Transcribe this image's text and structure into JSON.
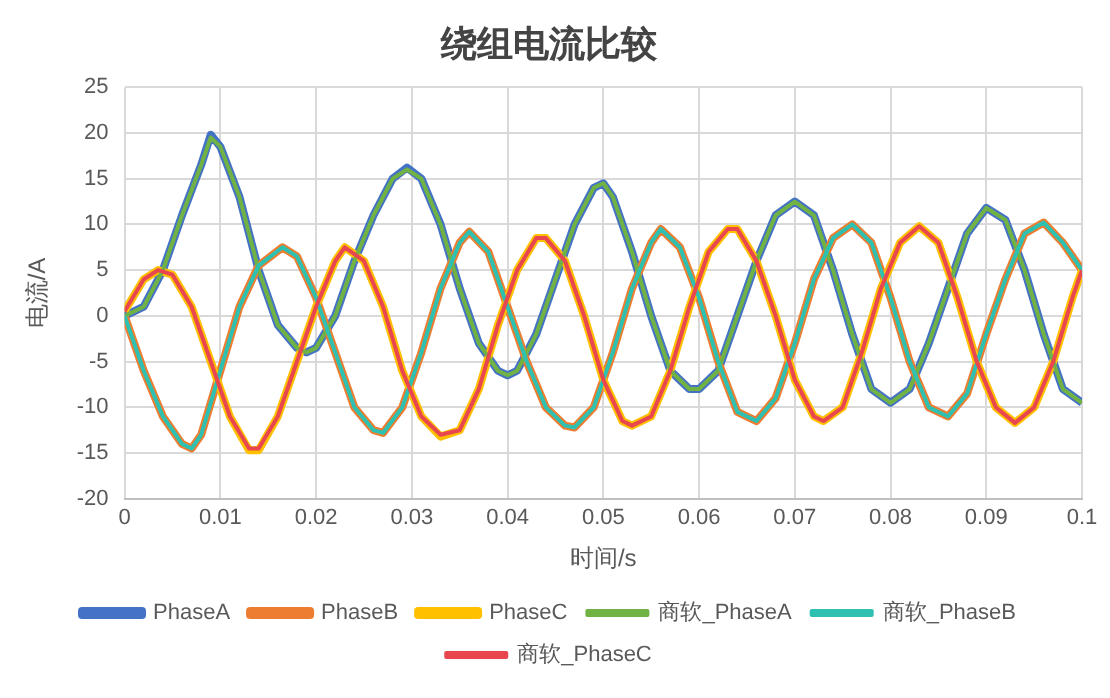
{
  "chart_data": {
    "type": "line",
    "title": "绕组电流比较",
    "xlabel": "时间/s",
    "ylabel": "电流/A",
    "xlim": [
      0,
      0.1
    ],
    "xticks": [
      0,
      0.01,
      0.02,
      0.03,
      0.04,
      0.05,
      0.06,
      0.07,
      0.08,
      0.09,
      0.1
    ],
    "ylim": [
      -20,
      25
    ],
    "yticks": [
      -20,
      -15,
      -10,
      -5,
      0,
      5,
      10,
      15,
      20,
      25
    ],
    "grid": true,
    "legend": "bottom",
    "marker": "none",
    "line_style": "solid",
    "series": [
      {
        "name": "PhaseA",
        "color": "#4472c4",
        "x": [
          0,
          0.002,
          0.004,
          0.006,
          0.008,
          0.009,
          0.01,
          0.012,
          0.014,
          0.016,
          0.018,
          0.019,
          0.02,
          0.022,
          0.024,
          0.026,
          0.028,
          0.0295,
          0.031,
          0.033,
          0.035,
          0.037,
          0.039,
          0.04,
          0.041,
          0.043,
          0.045,
          0.047,
          0.049,
          0.05,
          0.051,
          0.053,
          0.055,
          0.057,
          0.059,
          0.06,
          0.062,
          0.064,
          0.066,
          0.068,
          0.07,
          0.072,
          0.074,
          0.076,
          0.078,
          0.08,
          0.082,
          0.084,
          0.086,
          0.088,
          0.09,
          0.092,
          0.094,
          0.096,
          0.098,
          0.1
        ],
        "values": [
          0,
          1,
          5,
          11,
          16.5,
          19.8,
          18.5,
          13,
          5,
          -1,
          -3.5,
          -4,
          -3.5,
          0,
          6,
          11,
          15,
          16.2,
          15,
          10,
          3,
          -3,
          -6,
          -6.5,
          -6,
          -2,
          4,
          10,
          14,
          14.5,
          13,
          7,
          0,
          -6,
          -8,
          -8,
          -6,
          0,
          6,
          11,
          12.5,
          11,
          5,
          -2,
          -8,
          -9.5,
          -8,
          -3,
          3,
          9,
          11.8,
          10.5,
          5,
          -2,
          -8,
          -9.5
        ]
      },
      {
        "name": "PhaseB",
        "color": "#ed7d31",
        "x": [
          0,
          0.002,
          0.004,
          0.006,
          0.007,
          0.008,
          0.01,
          0.012,
          0.014,
          0.0165,
          0.018,
          0.02,
          0.022,
          0.024,
          0.026,
          0.027,
          0.029,
          0.031,
          0.033,
          0.035,
          0.036,
          0.038,
          0.04,
          0.042,
          0.044,
          0.046,
          0.047,
          0.049,
          0.051,
          0.053,
          0.055,
          0.056,
          0.058,
          0.06,
          0.062,
          0.064,
          0.066,
          0.068,
          0.07,
          0.072,
          0.074,
          0.076,
          0.078,
          0.08,
          0.082,
          0.084,
          0.086,
          0.088,
          0.09,
          0.092,
          0.094,
          0.096,
          0.098,
          0.1
        ],
        "values": [
          0,
          -6,
          -11,
          -14,
          -14.5,
          -13,
          -6,
          1,
          5.5,
          7.5,
          6.5,
          2,
          -4,
          -10,
          -12.5,
          -12.8,
          -10,
          -4,
          3,
          8,
          9.2,
          7,
          1,
          -5,
          -10,
          -12,
          -12.2,
          -10,
          -4,
          3,
          8,
          9.5,
          7.5,
          2,
          -5,
          -10.5,
          -11.5,
          -9,
          -3,
          4,
          8.5,
          10,
          8,
          2,
          -5,
          -10,
          -11,
          -8.5,
          -2,
          4,
          9,
          10.2,
          8,
          5
        ]
      },
      {
        "name": "PhaseC",
        "color": "#ffc000",
        "x": [
          0,
          0.002,
          0.0035,
          0.005,
          0.007,
          0.009,
          0.011,
          0.013,
          0.014,
          0.016,
          0.018,
          0.02,
          0.022,
          0.023,
          0.025,
          0.027,
          0.029,
          0.031,
          0.033,
          0.035,
          0.037,
          0.039,
          0.041,
          0.043,
          0.044,
          0.046,
          0.048,
          0.05,
          0.052,
          0.053,
          0.055,
          0.057,
          0.059,
          0.061,
          0.063,
          0.064,
          0.066,
          0.068,
          0.07,
          0.072,
          0.073,
          0.075,
          0.077,
          0.079,
          0.081,
          0.083,
          0.085,
          0.087,
          0.089,
          0.091,
          0.093,
          0.095,
          0.097,
          0.099,
          0.1
        ],
        "values": [
          0.5,
          4,
          5,
          4.5,
          1,
          -5,
          -11,
          -14.7,
          -14.7,
          -11,
          -5,
          1,
          6,
          7.5,
          6,
          1,
          -6,
          -11,
          -13.2,
          -12.5,
          -8,
          -1,
          5,
          8.5,
          8.5,
          6,
          0,
          -7,
          -11.5,
          -12,
          -11,
          -6,
          1,
          7,
          9.5,
          9.5,
          6,
          0,
          -7,
          -11,
          -11.5,
          -10,
          -4,
          3,
          8,
          9.8,
          8,
          2,
          -5,
          -10,
          -11.7,
          -10,
          -5,
          2,
          5
        ]
      },
      {
        "name": "商软_PhaseA",
        "color": "#70b244",
        "x": [
          0,
          0.002,
          0.004,
          0.006,
          0.008,
          0.009,
          0.01,
          0.012,
          0.014,
          0.016,
          0.018,
          0.019,
          0.02,
          0.022,
          0.024,
          0.026,
          0.028,
          0.0295,
          0.031,
          0.033,
          0.035,
          0.037,
          0.039,
          0.04,
          0.041,
          0.043,
          0.045,
          0.047,
          0.049,
          0.05,
          0.051,
          0.053,
          0.055,
          0.057,
          0.059,
          0.06,
          0.062,
          0.064,
          0.066,
          0.068,
          0.07,
          0.072,
          0.074,
          0.076,
          0.078,
          0.08,
          0.082,
          0.084,
          0.086,
          0.088,
          0.09,
          0.092,
          0.094,
          0.096,
          0.098,
          0.1
        ],
        "values": [
          0,
          1,
          5,
          11,
          16.5,
          19.5,
          18.5,
          13,
          5,
          -1,
          -3.5,
          -4,
          -3.5,
          0,
          6,
          11,
          15,
          16,
          15,
          10,
          3,
          -3,
          -6,
          -6.5,
          -6,
          -2,
          4,
          10,
          14,
          14.5,
          13,
          7,
          0,
          -6,
          -8,
          -8,
          -6,
          0,
          6,
          11,
          12.5,
          11,
          5,
          -2,
          -8,
          -9.5,
          -8,
          -3,
          3,
          9,
          11.8,
          10.5,
          5,
          -2,
          -8,
          -9.5
        ]
      },
      {
        "name": "商软_PhaseB",
        "color": "#2ec0b0",
        "x": [
          0,
          0.002,
          0.004,
          0.006,
          0.007,
          0.008,
          0.01,
          0.012,
          0.014,
          0.0165,
          0.018,
          0.02,
          0.022,
          0.024,
          0.026,
          0.027,
          0.029,
          0.031,
          0.033,
          0.035,
          0.036,
          0.038,
          0.04,
          0.042,
          0.044,
          0.046,
          0.047,
          0.049,
          0.051,
          0.053,
          0.055,
          0.056,
          0.058,
          0.06,
          0.062,
          0.064,
          0.066,
          0.068,
          0.07,
          0.072,
          0.074,
          0.076,
          0.078,
          0.08,
          0.082,
          0.084,
          0.086,
          0.088,
          0.09,
          0.092,
          0.094,
          0.096,
          0.098,
          0.1
        ],
        "values": [
          0,
          -6,
          -11,
          -14,
          -14.5,
          -13,
          -6,
          1,
          5.5,
          7.5,
          6.5,
          2,
          -4,
          -10,
          -12.5,
          -12.8,
          -10,
          -4,
          3,
          8,
          9.2,
          7,
          1,
          -5,
          -10,
          -12,
          -12.2,
          -10,
          -4,
          3,
          8,
          9.5,
          7.5,
          2,
          -5,
          -10.5,
          -11.5,
          -9,
          -3,
          4,
          8.5,
          10,
          8,
          2,
          -5,
          -10,
          -11,
          -8.5,
          -2,
          4,
          9,
          10.2,
          8,
          5
        ]
      },
      {
        "name": "商软_PhaseC",
        "color": "#e8474f",
        "x": [
          0,
          0.002,
          0.0035,
          0.005,
          0.007,
          0.009,
          0.011,
          0.013,
          0.014,
          0.016,
          0.018,
          0.02,
          0.022,
          0.023,
          0.025,
          0.027,
          0.029,
          0.031,
          0.033,
          0.035,
          0.037,
          0.039,
          0.041,
          0.043,
          0.044,
          0.046,
          0.048,
          0.05,
          0.052,
          0.053,
          0.055,
          0.057,
          0.059,
          0.061,
          0.063,
          0.064,
          0.066,
          0.068,
          0.07,
          0.072,
          0.073,
          0.075,
          0.077,
          0.079,
          0.081,
          0.083,
          0.085,
          0.087,
          0.089,
          0.091,
          0.093,
          0.095,
          0.097,
          0.099,
          0.1
        ],
        "values": [
          0.5,
          4,
          5,
          4.5,
          1,
          -5,
          -11,
          -14.5,
          -14.5,
          -11,
          -5,
          1,
          6,
          7.5,
          6,
          1,
          -6,
          -11,
          -13,
          -12.5,
          -8,
          -1,
          5,
          8.5,
          8.5,
          6,
          0,
          -7,
          -11.5,
          -12,
          -11,
          -6,
          1,
          7,
          9.5,
          9.5,
          6,
          0,
          -7,
          -11,
          -11.5,
          -10,
          -4,
          3,
          8,
          9.8,
          8,
          2,
          -5,
          -10,
          -11.7,
          -10,
          -5,
          2,
          5
        ]
      }
    ]
  }
}
